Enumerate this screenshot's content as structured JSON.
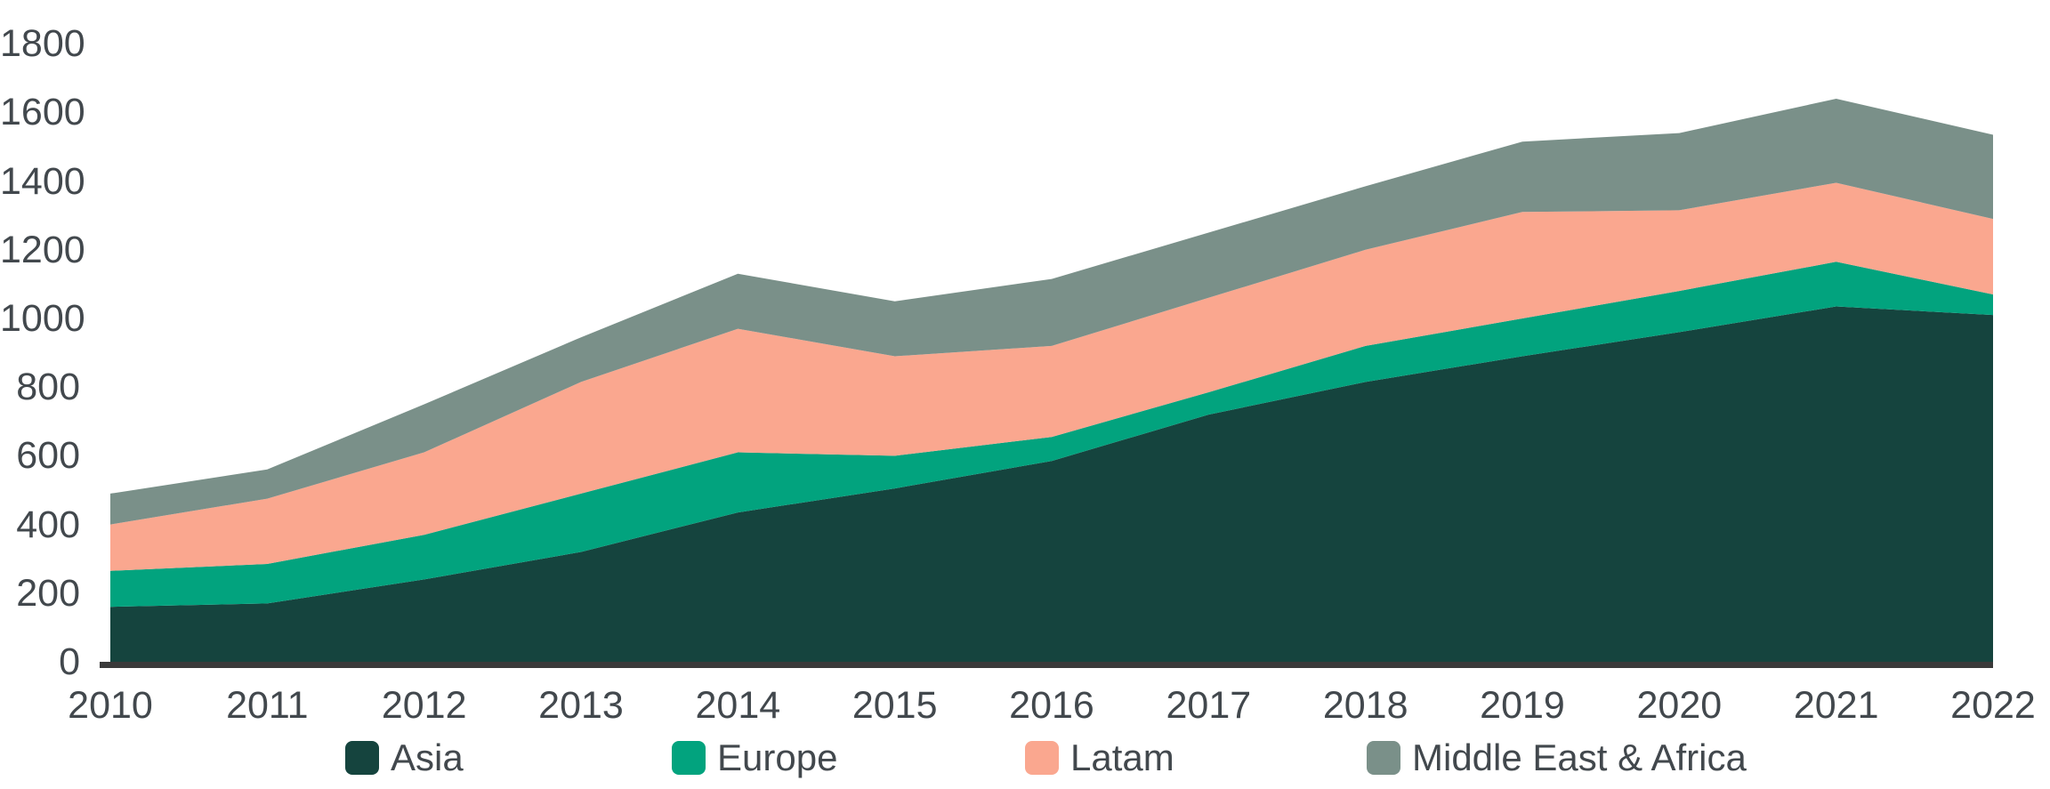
{
  "chart_data": {
    "type": "area",
    "stacked": true,
    "title": "",
    "xlabel": "",
    "ylabel": "",
    "x": [
      2010,
      2011,
      2012,
      2013,
      2014,
      2015,
      2016,
      2017,
      2018,
      2019,
      2020,
      2021,
      2022
    ],
    "series": [
      {
        "name": "Asia",
        "color": "#15443E",
        "values": [
          160,
          170,
          240,
          320,
          435,
          505,
          585,
          720,
          815,
          890,
          960,
          1035,
          1010
        ]
      },
      {
        "name": "Europe",
        "color": "#02A37E",
        "values": [
          105,
          115,
          130,
          170,
          175,
          95,
          70,
          65,
          105,
          110,
          120,
          130,
          60
        ]
      },
      {
        "name": "Latam",
        "color": "#FAA78F",
        "values": [
          135,
          190,
          240,
          325,
          360,
          290,
          265,
          275,
          280,
          310,
          235,
          230,
          220
        ]
      },
      {
        "name": "Middle East & Africa",
        "color": "#7A9089",
        "values": [
          90,
          85,
          140,
          130,
          160,
          160,
          195,
          190,
          185,
          205,
          225,
          245,
          245
        ]
      }
    ],
    "stacked_totals": [
      490,
      560,
      750,
      945,
      1130,
      1050,
      1115,
      1250,
      1385,
      1515,
      1540,
      1640,
      1535
    ],
    "ylim": [
      0,
      1800
    ],
    "y_ticks": [
      1800,
      1600,
      1400,
      1200,
      1000,
      800,
      600,
      400,
      200,
      0
    ],
    "grid": false,
    "legend_position": "bottom",
    "axis_line_color": "#3a3a3a",
    "tick_label_color": "#42484d"
  }
}
